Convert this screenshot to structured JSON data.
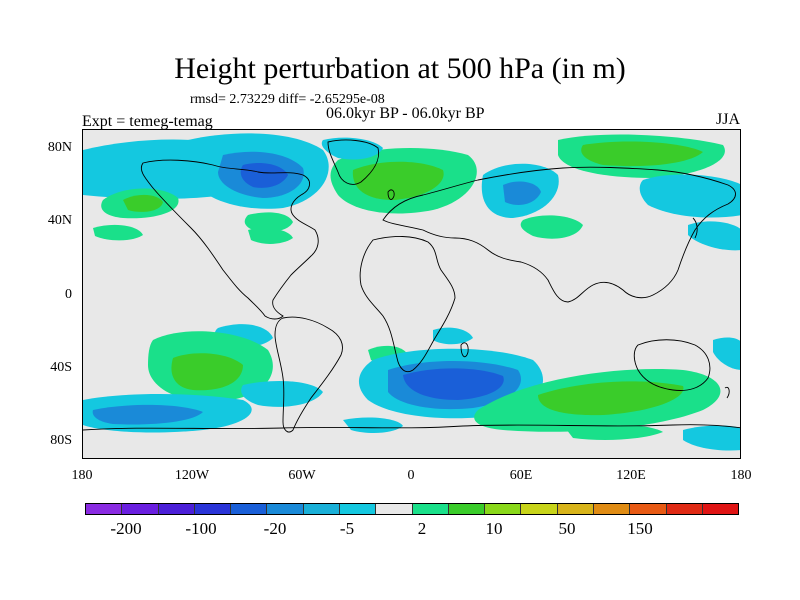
{
  "title": "Height perturbation at 500 hPa (in m)",
  "stats": "rmsd= 2.73229 diff= -2.65295e-08",
  "period": "06.0kyr BP - 06.0kyr BP",
  "experiment": "Expt = temeg-temag",
  "season": "JJA",
  "map": {
    "projection": "cylindrical-equidistant",
    "lon_range": [
      -180,
      180
    ],
    "lat_range": [
      -90,
      90
    ],
    "background_color": "#e8e8e8",
    "y_ticks": [
      "80N",
      "40N",
      "0",
      "40S",
      "80S"
    ],
    "x_ticks": [
      "180",
      "120W",
      "60W",
      "0",
      "60E",
      "120E",
      "180"
    ]
  },
  "colorbar": {
    "colors": [
      "#8a2be2",
      "#6a1fe0",
      "#4b1fd8",
      "#2a34d8",
      "#1a5fd8",
      "#1a8ad8",
      "#1ab0d8",
      "#14c8e0",
      "#e8e8e8",
      "#1ae08a",
      "#3acc2a",
      "#8ad81a",
      "#c8d41a",
      "#d8b41a",
      "#e08c14",
      "#e85a14",
      "#e02a14",
      "#e01414"
    ],
    "labels": [
      "-200",
      "-100",
      "-20",
      "-5",
      "2",
      "10",
      "50",
      "150"
    ]
  },
  "chart_data": {
    "type": "heatmap",
    "title": "Height perturbation at 500 hPa (in m)",
    "variable": "500 hPa geopotential height perturbation",
    "units": "m",
    "season": "JJA",
    "x_ticks": [
      "180",
      "120W",
      "60W",
      "0",
      "60E",
      "120E",
      "180"
    ],
    "y_ticks": [
      "80N",
      "40N",
      "0",
      "40S",
      "80S"
    ],
    "contour_levels_shown": [
      "-200",
      "-100",
      "-20",
      "-5",
      "2",
      "10",
      "50",
      "150"
    ],
    "regions": [
      {
        "region": "Arctic Canada / Greenland",
        "sign": "negative",
        "approx_value": -20
      },
      {
        "region": "North Pacific / Alaska",
        "sign": "negative",
        "approx_value": -5
      },
      {
        "region": "Eastern Europe / Western Siberia",
        "sign": "negative",
        "approx_value": -20
      },
      {
        "region": "North Atlantic / Scandinavia",
        "sign": "positive",
        "approx_value": 10
      },
      {
        "region": "Northern Siberia",
        "sign": "positive",
        "approx_value": 10
      },
      {
        "region": "Western North America",
        "sign": "positive",
        "approx_value": 10
      },
      {
        "region": "South Pacific midlatitudes",
        "sign": "positive",
        "approx_value": 10
      },
      {
        "region": "South Atlantic / Southern Africa",
        "sign": "negative",
        "approx_value": -20
      },
      {
        "region": "Southern Indian Ocean / Australia south",
        "sign": "positive",
        "approx_value": 10
      },
      {
        "region": "Southern Ocean near 60S (Pacific sector)",
        "sign": "negative",
        "approx_value": -20
      }
    ]
  }
}
